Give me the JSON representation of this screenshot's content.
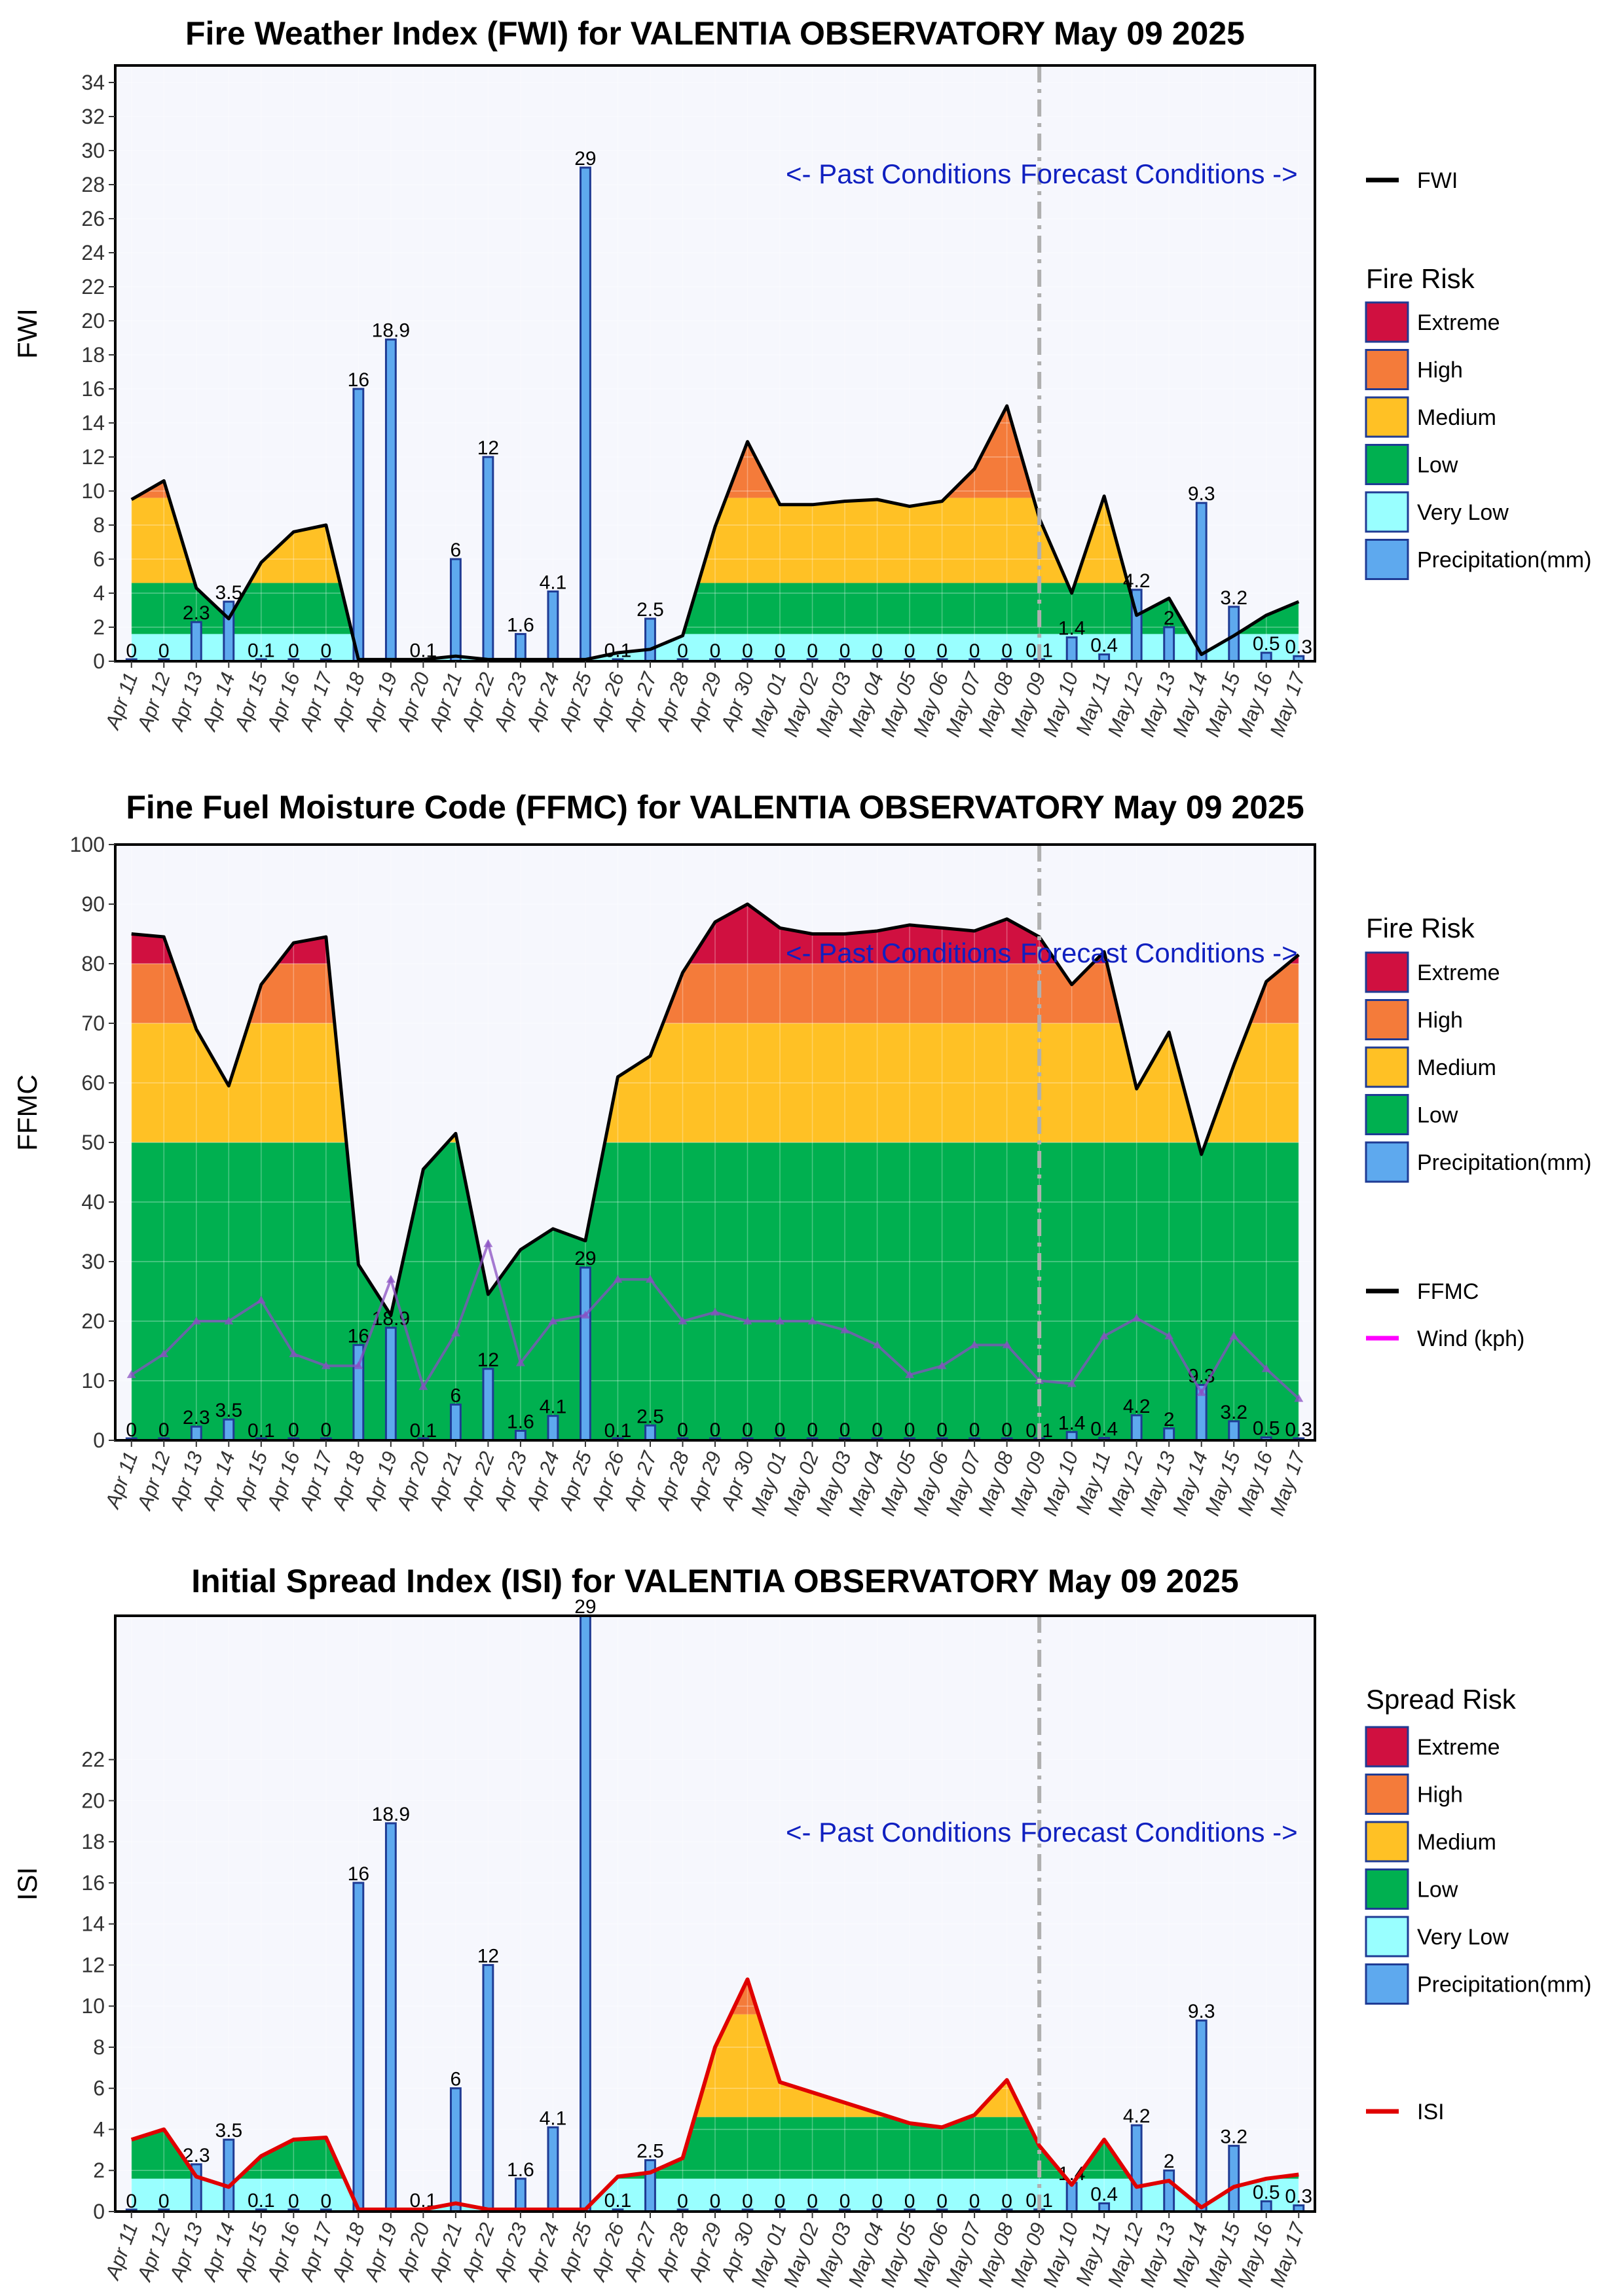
{
  "chart_data": [
    {
      "type": "area",
      "title": "Fire Weather Index (FWI) for VALENTIA OBSERVATORY May 09 2025",
      "ylabel": "FWI",
      "ylim": [
        0,
        35
      ],
      "yticks": [
        "0",
        "2",
        "4",
        "6",
        "8",
        "10",
        "12",
        "14",
        "16",
        "18",
        "20",
        "22",
        "24",
        "26",
        "28",
        "30",
        "32",
        "34"
      ],
      "forecast_start": "May 09",
      "annotation_past": "<- Past Conditions",
      "annotation_forecast": "Forecast Conditions ->",
      "bands": [
        {
          "name": "Very Low",
          "from": 0,
          "to": 1.6,
          "color": "#99ffff"
        },
        {
          "name": "Low",
          "from": 1.6,
          "to": 4.6,
          "color": "#00b050"
        },
        {
          "name": "Medium",
          "from": 4.6,
          "to": 9.6,
          "color": "#ffc125"
        },
        {
          "name": "High",
          "from": 9.6,
          "to": 15,
          "color": "#f47b3a"
        },
        {
          "name": "Extreme",
          "from": 15,
          "to": 35,
          "color": "#d01040"
        }
      ],
      "series": [
        {
          "name": "FWI",
          "color": "#000000",
          "values": [
            9.5,
            10.6,
            4.3,
            2.5,
            5.8,
            7.6,
            8.0,
            0.1,
            0.1,
            0.1,
            0.3,
            0.1,
            0.1,
            0.1,
            0.1,
            0.5,
            0.7,
            1.5,
            7.9,
            12.9,
            9.2,
            9.2,
            9.4,
            9.5,
            9.1,
            9.4,
            11.3,
            15.0,
            8.4,
            4.0,
            9.7,
            2.7,
            3.7,
            0.4,
            1.5,
            2.7,
            3.5
          ]
        }
      ],
      "legend_title": "Fire Risk",
      "legend": [
        "Extreme",
        "High",
        "Medium",
        "Low",
        "Very Low",
        "Precipitation(mm)"
      ]
    },
    {
      "type": "area",
      "title": "Fine Fuel Moisture Code (FFMC) for VALENTIA OBSERVATORY May 09 2025",
      "ylabel": "FFMC",
      "ylim": [
        0,
        100
      ],
      "yticks": [
        "0",
        "10",
        "20",
        "30",
        "40",
        "50",
        "60",
        "70",
        "80",
        "90",
        "100"
      ],
      "forecast_start": "May 09",
      "annotation_past": "<- Past Conditions",
      "annotation_forecast": "Forecast Conditions ->",
      "bands": [
        {
          "name": "Low",
          "from": 0,
          "to": 50,
          "color": "#00b050"
        },
        {
          "name": "Medium",
          "from": 50,
          "to": 70,
          "color": "#ffc125"
        },
        {
          "name": "High",
          "from": 70,
          "to": 80,
          "color": "#f47b3a"
        },
        {
          "name": "Extreme",
          "from": 80,
          "to": 100,
          "color": "#d01040"
        }
      ],
      "series": [
        {
          "name": "FFMC",
          "color": "#000000",
          "values": [
            85,
            84.5,
            69,
            59.5,
            76.5,
            83.5,
            84.5,
            29.5,
            21,
            45.5,
            51.5,
            24.5,
            32,
            35.5,
            33.5,
            61,
            64.5,
            78.5,
            87,
            90,
            86,
            85,
            85,
            85.5,
            86.5,
            86,
            85.5,
            87.5,
            84.5,
            76.5,
            82,
            59,
            68.5,
            48,
            63,
            77,
            81.5
          ]
        },
        {
          "name": "Wind (kph)",
          "color": "#ff00ff",
          "values": [
            11,
            14.5,
            20,
            20,
            23.5,
            14.5,
            12.5,
            12.5,
            27,
            9,
            18,
            33,
            13,
            20,
            21,
            27,
            27,
            20,
            21.5,
            20,
            20,
            20,
            18.5,
            16,
            11,
            12.5,
            16,
            16,
            10,
            9.5,
            17.5,
            20.5,
            17.5,
            8,
            17.5,
            12,
            7
          ]
        }
      ],
      "legend_title": "Fire Risk",
      "legend": [
        "Extreme",
        "High",
        "Medium",
        "Low",
        "Precipitation(mm)"
      ],
      "legend2": [
        "FFMC",
        "Wind (kph)"
      ]
    },
    {
      "type": "area",
      "title": "Initial Spread Index (ISI) for VALENTIA OBSERVATORY May 09 2025",
      "ylabel": "ISI",
      "ylim": [
        0,
        29
      ],
      "yticks": [
        "0",
        "2",
        "4",
        "6",
        "8",
        "10",
        "12",
        "14",
        "16",
        "18",
        "20",
        "22"
      ],
      "forecast_start": "May 09",
      "annotation_past": "<- Past Conditions",
      "annotation_forecast": "Forecast Conditions ->",
      "bands": [
        {
          "name": "Very Low",
          "from": 0,
          "to": 1.6,
          "color": "#99ffff"
        },
        {
          "name": "Low",
          "from": 1.6,
          "to": 4.6,
          "color": "#00b050"
        },
        {
          "name": "Medium",
          "from": 4.6,
          "to": 9.6,
          "color": "#ffc125"
        },
        {
          "name": "High",
          "from": 9.6,
          "to": 15,
          "color": "#f47b3a"
        },
        {
          "name": "Extreme",
          "from": 15,
          "to": 29,
          "color": "#d01040"
        }
      ],
      "series": [
        {
          "name": "ISI",
          "color": "#e00000",
          "values": [
            3.5,
            4.0,
            1.7,
            1.2,
            2.7,
            3.5,
            3.6,
            0.1,
            0.1,
            0.1,
            0.4,
            0.1,
            0.1,
            0.1,
            0.1,
            1.7,
            1.9,
            2.6,
            8.0,
            11.3,
            6.3,
            5.8,
            5.3,
            4.8,
            4.3,
            4.1,
            4.7,
            6.4,
            3.2,
            1.3,
            3.5,
            1.2,
            1.5,
            0.2,
            1.2,
            1.6,
            1.8
          ]
        }
      ],
      "legend_title": "Spread Risk",
      "legend": [
        "Extreme",
        "High",
        "Medium",
        "Low",
        "Very Low",
        "Precipitation(mm)"
      ]
    }
  ],
  "dates": [
    "Apr 11",
    "Apr 12",
    "Apr 13",
    "Apr 14",
    "Apr 15",
    "Apr 16",
    "Apr 17",
    "Apr 18",
    "Apr 19",
    "Apr 20",
    "Apr 21",
    "Apr 22",
    "Apr 23",
    "Apr 24",
    "Apr 25",
    "Apr 26",
    "Apr 27",
    "Apr 28",
    "Apr 29",
    "Apr 30",
    "May 01",
    "May 02",
    "May 03",
    "May 04",
    "May 05",
    "May 06",
    "May 07",
    "May 08",
    "May 09",
    "May 10",
    "May 11",
    "May 12",
    "May 13",
    "May 14",
    "May 15",
    "May 16",
    "May 17"
  ],
  "precipitation": {
    "name": "Precipitation(mm)",
    "color": "#5ea9ee",
    "values": [
      0,
      0,
      2.3,
      3.5,
      0.1,
      0,
      0,
      16,
      18.9,
      0.1,
      6,
      12,
      1.6,
      4.1,
      29,
      0.1,
      2.5,
      0,
      0,
      0,
      0,
      0,
      0,
      0,
      0,
      0,
      0,
      0,
      0.1,
      1.4,
      0.4,
      4.2,
      2,
      9.3,
      3.2,
      0.5,
      0.3
    ],
    "labels": [
      "0",
      "0",
      "2.3",
      "3.5",
      "0.1",
      "0",
      "0",
      "16",
      "18.9",
      "0.1",
      "6",
      "12",
      "1.6",
      "4.1",
      "29",
      "0.1",
      "2.5",
      "0",
      "0",
      "0",
      "0",
      "0",
      "0",
      "0",
      "0",
      "0",
      "0",
      "0",
      "0.1",
      "1.4",
      "0.4",
      "4.2",
      "2",
      "9.3",
      "3.2",
      "0.5",
      "0.3"
    ]
  },
  "colors": {
    "plot_bg": "#f6f7fd",
    "bar_edge": "#1f3b94",
    "forecast_line": "#b0b0b0"
  }
}
